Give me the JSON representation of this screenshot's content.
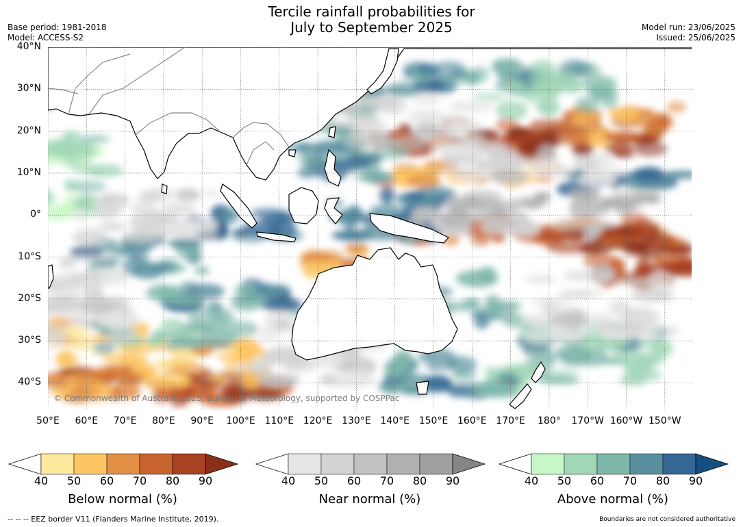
{
  "header": {
    "title_line1": "Tercile rainfall probabilities for",
    "title_line2": "July to September 2025",
    "base_period": "Base period: 1981-2018",
    "model": "Model: ACCESS-S2",
    "model_run": "Model run: 23/06/2025",
    "issued": "Issued: 25/06/2025"
  },
  "map": {
    "copyright": "© Commonwealth of Australia 2025, Bureau of Meteorology, supported by COSPPac",
    "lat_labels": [
      "40°N",
      "30°N",
      "20°N",
      "10°N",
      "0°",
      "10°S",
      "20°S",
      "30°S",
      "40°S"
    ],
    "lon_labels": [
      "50°E",
      "60°E",
      "70°E",
      "80°E",
      "90°E",
      "100°E",
      "110°E",
      "120°E",
      "130°E",
      "140°E",
      "150°E",
      "160°E",
      "170°E",
      "180°",
      "170°W",
      "160°W",
      "150°W"
    ],
    "land_color": "#ffffff",
    "coast_color": "#000000",
    "border_color": "#888888"
  },
  "colorbars": [
    {
      "label": "Below normal (%)",
      "ticks": [
        "40",
        "50",
        "60",
        "70",
        "80",
        "90"
      ],
      "colors": [
        "#ffffff",
        "#fee99f",
        "#fdc563",
        "#e08f45",
        "#c9632f",
        "#a84223",
        "#8b2f1a"
      ]
    },
    {
      "label": "Near normal (%)",
      "ticks": [
        "40",
        "50",
        "60",
        "70",
        "80",
        "90"
      ],
      "colors": [
        "#ffffff",
        "#e6e6e6",
        "#d3d3d3",
        "#c2c2c2",
        "#b0b0b0",
        "#a0a0a0",
        "#858585"
      ]
    },
    {
      "label": "Above normal (%)",
      "ticks": [
        "40",
        "50",
        "60",
        "70",
        "80",
        "90"
      ],
      "colors": [
        "#ffffff",
        "#c8f7c6",
        "#a1d6b7",
        "#7fb7ab",
        "#5a8fa0",
        "#346794",
        "#154e80"
      ]
    }
  ],
  "footer": {
    "eez": "--  --  -- EEZ border V11 (Flanders Marine Institute, 2019).",
    "disclaimer": "Boundaries are not considered authoritative"
  }
}
